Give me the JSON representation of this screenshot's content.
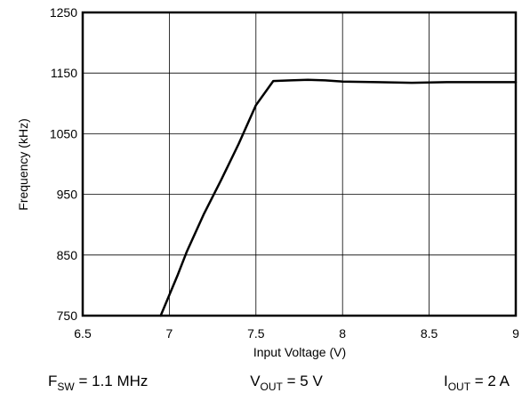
{
  "chart_data": {
    "type": "line",
    "title": "",
    "xlabel": "Input Voltage (V)",
    "ylabel": "Frequency (kHz)",
    "xlim": [
      6.5,
      9
    ],
    "ylim": [
      750,
      1250
    ],
    "xticks": [
      "6.5",
      "7",
      "7.5",
      "8",
      "8.5",
      "9"
    ],
    "yticks": [
      "750",
      "850",
      "950",
      "1050",
      "1150",
      "1250"
    ],
    "grid": true,
    "legend": "none",
    "line_color": "#000000",
    "series": [
      {
        "x": [
          6.95,
          7.05,
          7.1,
          7.2,
          7.3,
          7.4,
          7.5,
          7.6,
          7.7,
          7.8,
          7.9,
          8.0,
          8.2,
          8.4,
          8.6,
          8.8,
          9.0
        ],
        "y": [
          750,
          818,
          855,
          918,
          974,
          1033,
          1097,
          1137,
          1138,
          1139,
          1138,
          1136,
          1135,
          1134,
          1135,
          1135,
          1135
        ]
      }
    ]
  },
  "conditions": [
    {
      "main": "F",
      "sub": "SW",
      "rest": " = 1.1 MHz"
    },
    {
      "main": "V",
      "sub": "OUT",
      "rest": " = 5 V"
    },
    {
      "main": "I",
      "sub": "OUT",
      "rest": " = 2 A"
    }
  ]
}
